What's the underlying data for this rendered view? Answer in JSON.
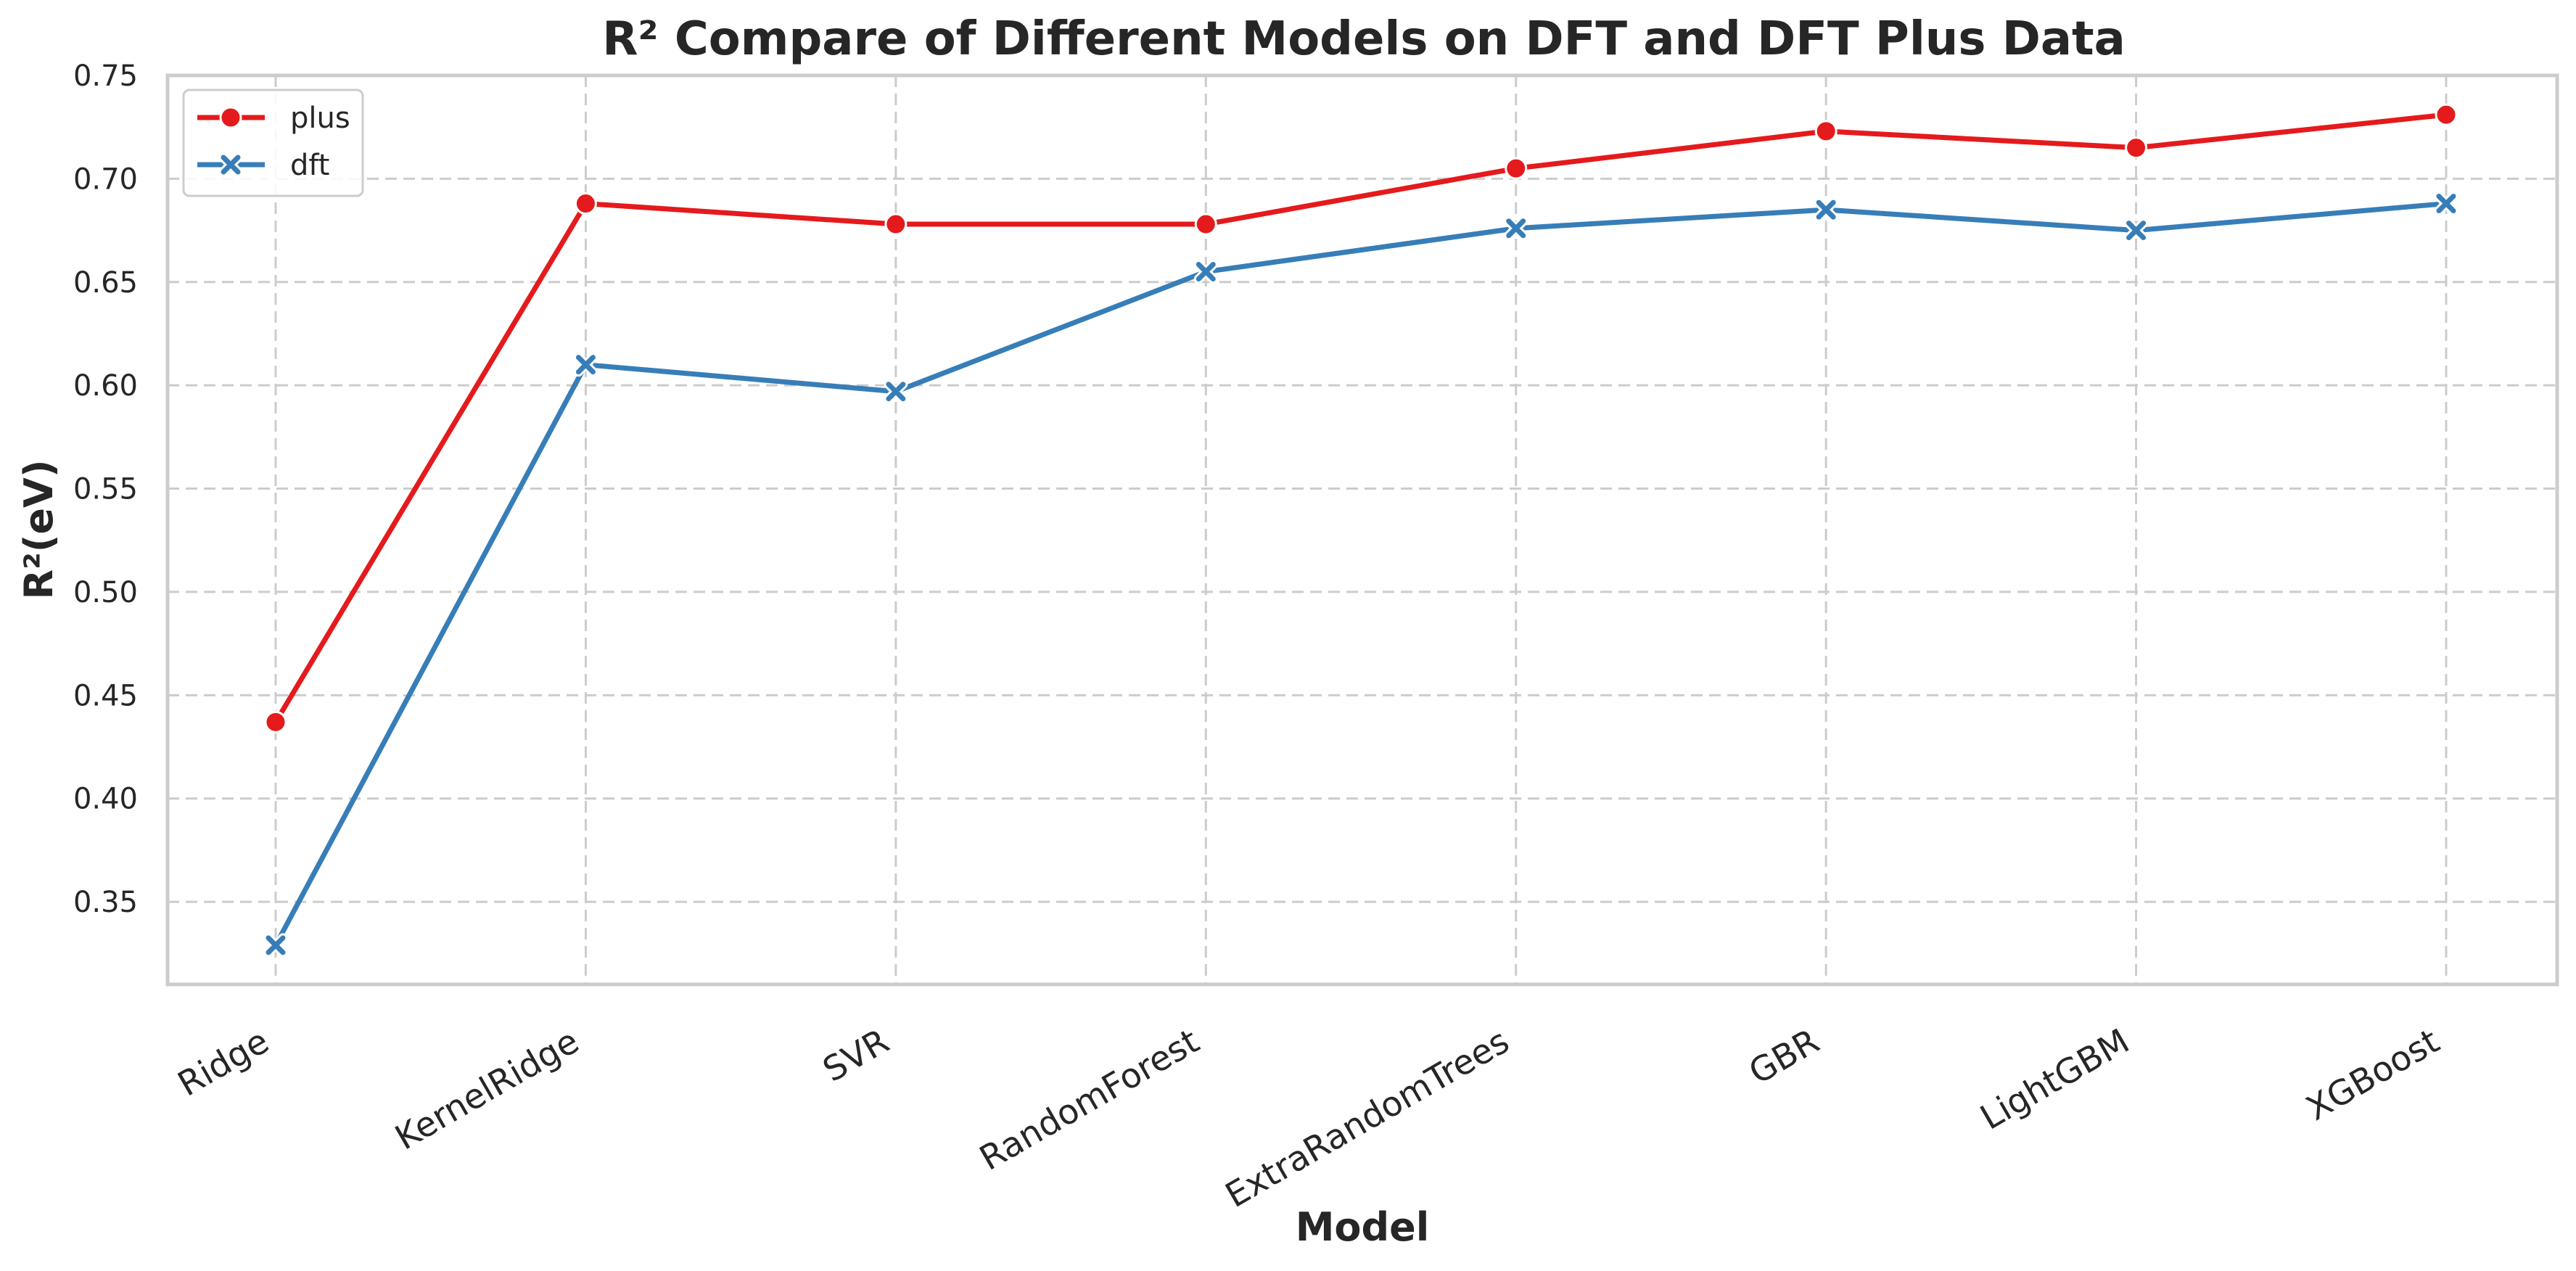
{
  "chart_data": {
    "type": "line",
    "title": "R² Compare of Different Models on DFT and DFT Plus Data",
    "xlabel": "Model",
    "ylabel": "R²(eV)",
    "categories": [
      "Ridge",
      "KernelRidge",
      "SVR",
      "RandomForest",
      "ExtraRandomTrees",
      "GBR",
      "LightGBM",
      "XGBoost"
    ],
    "ylim": [
      0.31,
      0.75
    ],
    "yticks": [
      "0.35",
      "0.40",
      "0.45",
      "0.50",
      "0.55",
      "0.60",
      "0.65",
      "0.70",
      "0.75"
    ],
    "grid": true,
    "legend_position": "top-left",
    "series": [
      {
        "name": "plus",
        "color": "#e41a1c",
        "marker": "circle",
        "values": [
          0.437,
          0.688,
          0.678,
          0.678,
          0.705,
          0.723,
          0.715,
          0.731
        ]
      },
      {
        "name": "dft",
        "color": "#377eb8",
        "marker": "x",
        "values": [
          0.329,
          0.61,
          0.597,
          0.655,
          0.676,
          0.685,
          0.675,
          0.688
        ]
      }
    ]
  }
}
